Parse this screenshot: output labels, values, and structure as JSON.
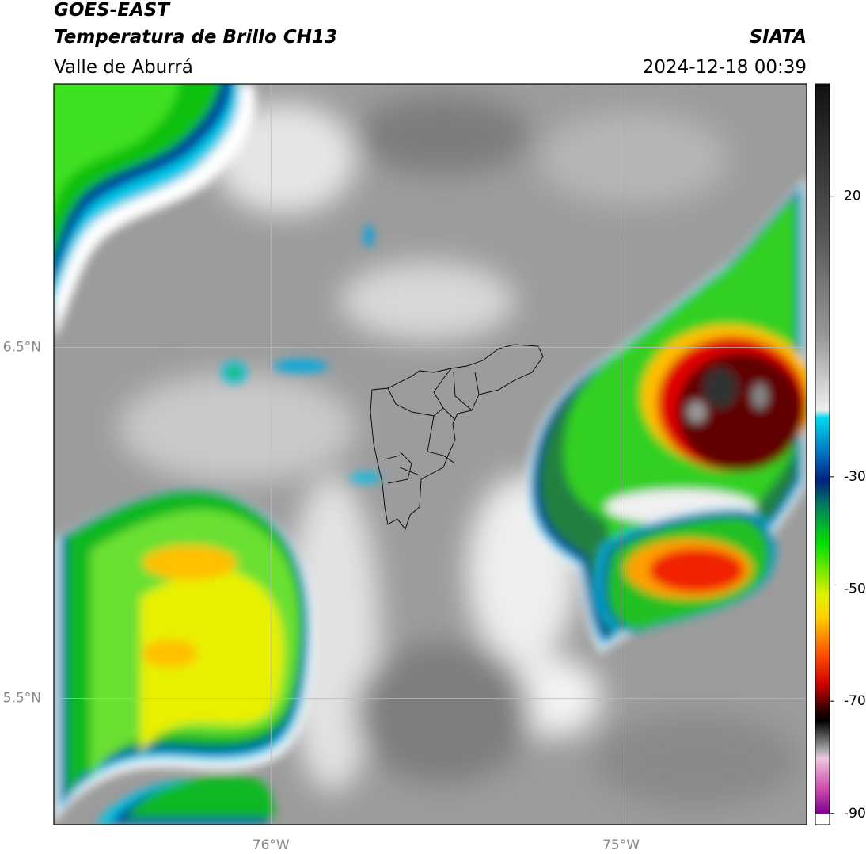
{
  "header": {
    "title": "GOES-EAST",
    "subtitle": "Temperatura de Brillo CH13",
    "region": "Valle de Aburrá",
    "source": "SIATA",
    "datetime": "2024-12-18 00:39"
  },
  "map": {
    "xlim": [
      -76.62,
      -74.47
    ],
    "ylim": [
      5.14,
      7.25
    ],
    "xticks": [
      {
        "value": -76,
        "label": "76°W"
      },
      {
        "value": -75,
        "label": "75°W"
      }
    ],
    "yticks": [
      {
        "value": 6.5,
        "label": "6.5°N"
      },
      {
        "value": 5.5,
        "label": "5.5°N"
      }
    ],
    "grid": true
  },
  "colorbar": {
    "lim": [
      -92,
      40
    ],
    "ticks": [
      20,
      -30,
      -50,
      -70,
      -90
    ]
  }
}
